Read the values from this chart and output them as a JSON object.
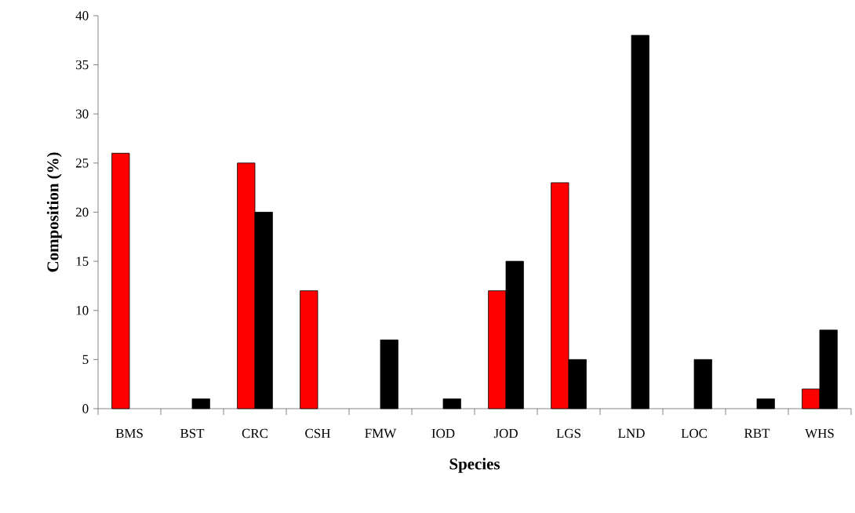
{
  "chart_data": {
    "type": "bar",
    "xlabel": "Species",
    "ylabel": "Composition (%)",
    "categories": [
      "BMS",
      "BST",
      "CRC",
      "CSH",
      "FMW",
      "IOD",
      "JOD",
      "LGS",
      "LND",
      "LOC",
      "RBT",
      "WHS"
    ],
    "series": [
      {
        "color": "#ff0000",
        "values": [
          26,
          null,
          25,
          12,
          null,
          null,
          12,
          23,
          null,
          null,
          null,
          2
        ]
      },
      {
        "color": "#000000",
        "values": [
          null,
          1,
          20,
          null,
          7,
          1,
          15,
          5,
          38,
          5,
          1,
          8
        ]
      }
    ],
    "ylim": [
      0,
      40
    ],
    "yticks": [
      0,
      5,
      10,
      15,
      20,
      25,
      30,
      35,
      40
    ],
    "grid": false
  }
}
